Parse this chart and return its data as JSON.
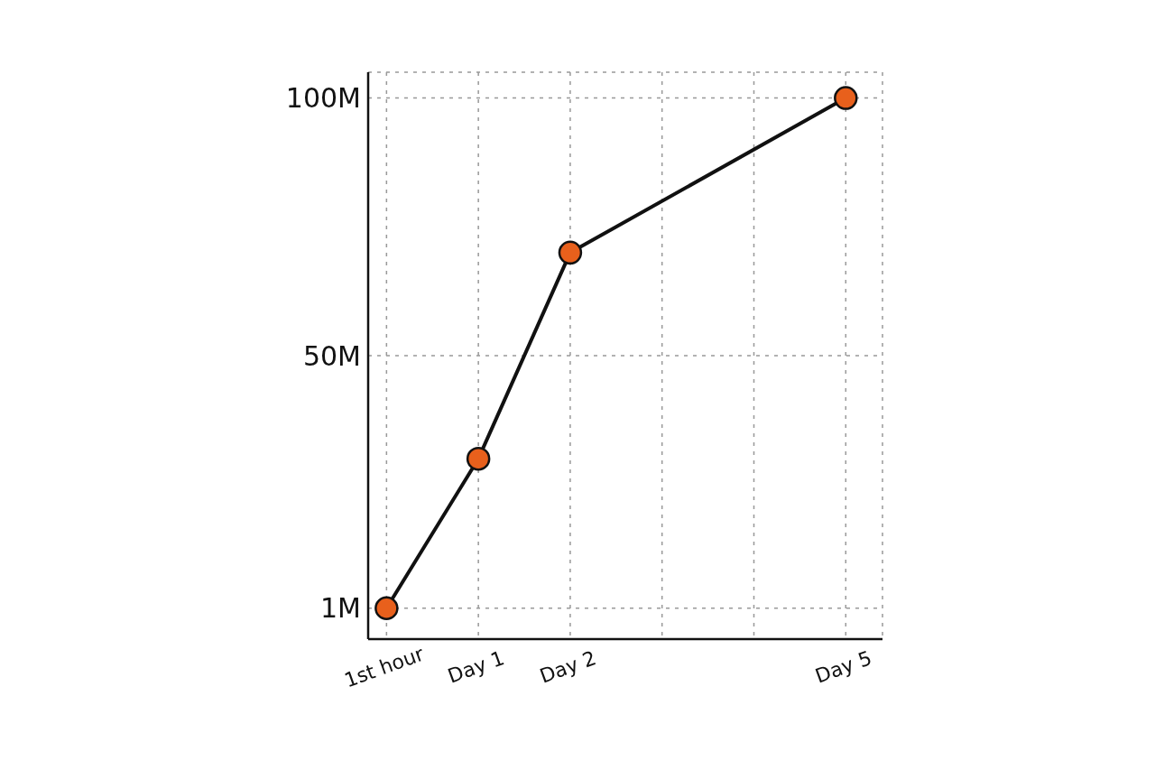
{
  "chart_data": {
    "type": "line",
    "categories": [
      "1st hour",
      "Day 1",
      "Day 2",
      null,
      null,
      "Day 5"
    ],
    "series": [
      {
        "color": "#e8601c",
        "values": [
          1,
          30,
          70,
          null,
          null,
          100
        ]
      }
    ],
    "ylim": [
      -5,
      105
    ],
    "yticks": [
      {
        "value": 1,
        "label": "1M"
      },
      {
        "value": 50,
        "label": "50M"
      },
      {
        "value": 100,
        "label": "100M"
      }
    ],
    "grid": true,
    "marker": "circle",
    "line_style": "solid"
  }
}
